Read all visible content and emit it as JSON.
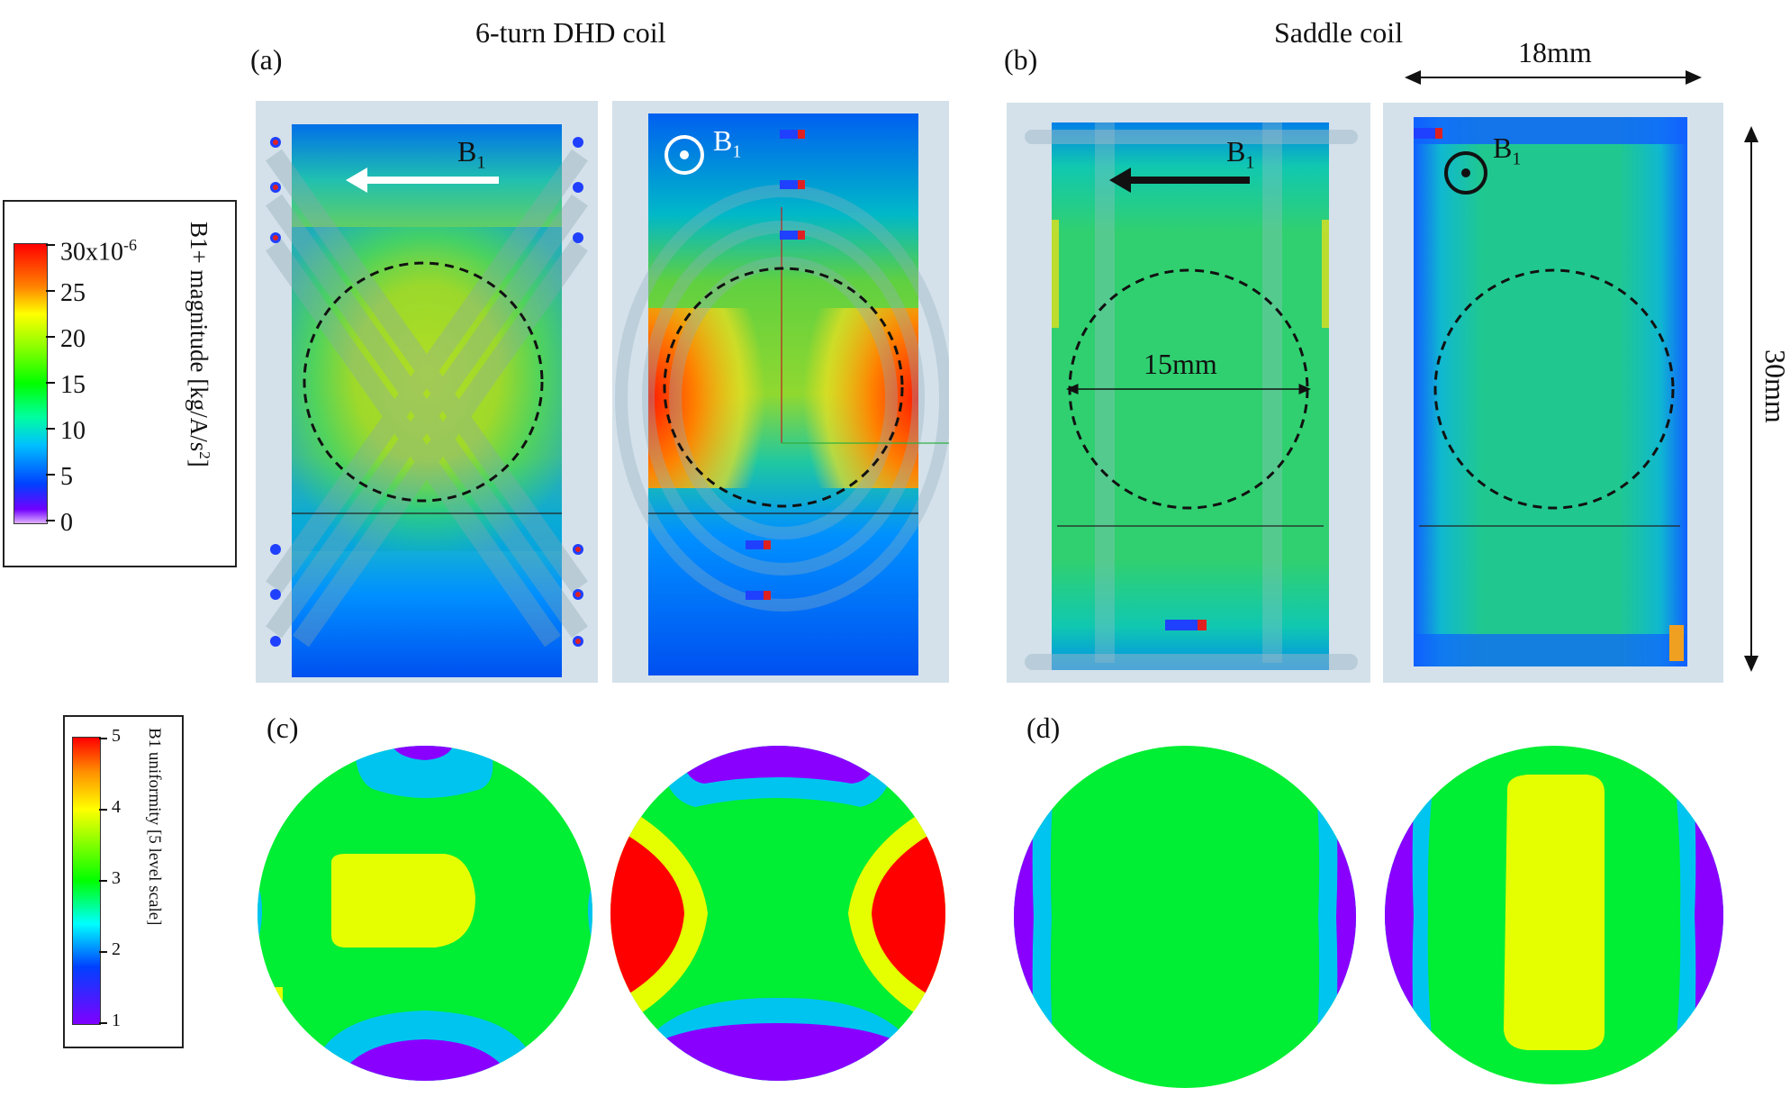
{
  "figure": {
    "top_titles": {
      "dhd": "6-turn DHD coil",
      "saddle": "Saddle coil"
    },
    "panel_labels": {
      "a": "(a)",
      "b": "(b)",
      "c": "(c)",
      "d": "(d)"
    },
    "b1_symbol": "B",
    "b1_subscript": "1",
    "dimensions": {
      "width": "18mm",
      "height": "30mm",
      "roi_diameter": "15mm"
    },
    "legend_top": {
      "title": "B1+ magnitude [kg/A/s",
      "title_sup": "2",
      "title_end": "]",
      "ticks": [
        "30x10",
        "25",
        "20",
        "15",
        "10",
        "5",
        "0"
      ],
      "top_sup": "-6"
    },
    "legend_bottom": {
      "title": "B1 uniformity [5 level scale]",
      "ticks": [
        "5",
        "4",
        "3",
        "2",
        "1"
      ]
    },
    "colors": {
      "red": "#ff0000",
      "yellow": "#e5ff00",
      "green": "#00ee33",
      "cyan": "#00c4f0",
      "blue": "#0050ff",
      "purple": "#8a00ff"
    }
  }
}
